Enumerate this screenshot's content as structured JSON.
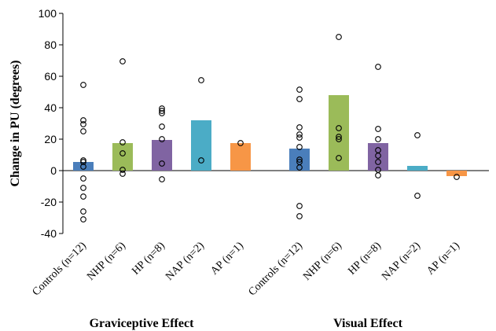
{
  "chart_data": {
    "type": "bar",
    "ylabel": "Change in PU (degrees)",
    "ylim": [
      -40,
      100
    ],
    "ytick_step": 20,
    "grid": false,
    "groups": [
      {
        "label": "Graviceptive Effect",
        "bars": [
          {
            "category": "Controls (n=12)",
            "value": 5.5,
            "color": "#4a7ebb",
            "points": [
              54.5,
              32,
              29.5,
              25,
              6.5,
              5.5,
              2.5,
              -5,
              -11,
              -16.5,
              -26,
              -31
            ]
          },
          {
            "category": "NHP (n=6)",
            "value": 17.5,
            "color": "#9bbb59",
            "points": [
              69.5,
              18,
              11,
              0.5,
              -2
            ]
          },
          {
            "category": "HP (n=8)",
            "value": 19.5,
            "color": "#8064a2",
            "points": [
              39.5,
              38,
              36.5,
              28,
              20,
              4.5,
              -5.5
            ]
          },
          {
            "category": "NAP (n=2)",
            "value": 32,
            "color": "#4bacc6",
            "points": [
              57.5,
              6.5
            ]
          },
          {
            "category": "AP (n=1)",
            "value": 17.5,
            "color": "#f79646",
            "points": [
              17.5
            ]
          }
        ]
      },
      {
        "label": "Visual Effect",
        "bars": [
          {
            "category": "Controls (n=12)",
            "value": 14,
            "color": "#4a7ebb",
            "points": [
              51.5,
              45.5,
              27.5,
              23,
              21,
              15,
              7,
              5.5,
              2,
              -22.5,
              -29
            ]
          },
          {
            "category": "NHP (n=6)",
            "value": 48,
            "color": "#9bbb59",
            "points": [
              85,
              27,
              21.5,
              20,
              8
            ]
          },
          {
            "category": "HP (n=8)",
            "value": 17.5,
            "color": "#8064a2",
            "points": [
              66,
              26.5,
              20,
              13,
              9.5,
              5.5,
              0.5,
              -3
            ]
          },
          {
            "category": "NAP (n=2)",
            "value": 3,
            "color": "#4bacc6",
            "points": [
              22.5,
              -16
            ]
          },
          {
            "category": "AP (n=1)",
            "value": -3.5,
            "color": "#f79646",
            "points": [
              -4
            ]
          }
        ]
      }
    ]
  }
}
